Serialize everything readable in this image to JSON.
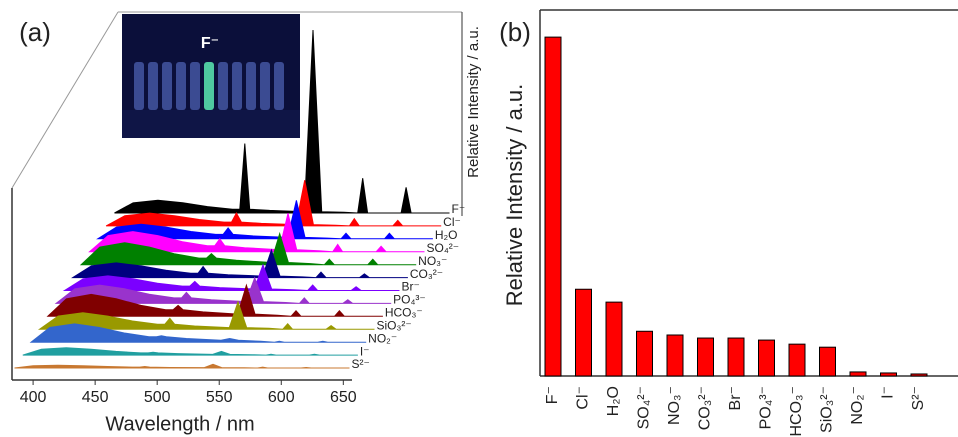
{
  "chart_data": [
    {
      "type": "area",
      "title": "(a)",
      "annotation": "F⁻",
      "x_label": "Wavelength / nm",
      "y_label": "Relative Intensity / a.u.",
      "xlim": [
        383,
        657
      ],
      "xticks": [
        400,
        450,
        500,
        550,
        600,
        650
      ],
      "x": [
        385,
        400,
        420,
        440,
        460,
        480,
        486,
        490,
        494,
        510,
        538,
        545,
        552,
        570,
        581,
        585,
        589,
        605,
        616,
        620,
        624,
        640,
        655
      ],
      "series": [
        {
          "name": "F⁻",
          "color": "#000000",
          "values": [
            0,
            5.6,
            7,
            5.6,
            3.5,
            2.1,
            2.1,
            38,
            2.1,
            1.4,
            0.7,
            100,
            0.7,
            0.4,
            0,
            19,
            0,
            0,
            0,
            14,
            0,
            0,
            0
          ]
        },
        {
          "name": "Cl⁻",
          "color": "#ff0000",
          "values": [
            0,
            5.6,
            7,
            5.6,
            3.5,
            2.1,
            2.1,
            7,
            2.1,
            1.4,
            0.7,
            25,
            0.7,
            0.4,
            0,
            4,
            0,
            0,
            0,
            3,
            0,
            0,
            0
          ]
        },
        {
          "name": "H₂O",
          "color": "#0000ff",
          "values": [
            0,
            6.4,
            8,
            6.4,
            4,
            2.4,
            2.4,
            6,
            2.4,
            1.6,
            0.8,
            21,
            0.8,
            0.4,
            0,
            3,
            0,
            0,
            0,
            3,
            0,
            0,
            0
          ]
        },
        {
          "name": "SO₄²⁻",
          "color": "#ff00ff",
          "values": [
            0,
            8.8,
            11,
            8.8,
            5.5,
            3.3,
            3.3,
            7,
            3.3,
            2.2,
            1.1,
            21,
            1.1,
            0.6,
            0,
            4,
            0,
            0,
            0,
            3,
            0,
            0,
            0
          ]
        },
        {
          "name": "NO₃⁻",
          "color": "#008000",
          "values": [
            0,
            9.6,
            12,
            9.6,
            6,
            3.6,
            3.6,
            6,
            3.6,
            2.4,
            1.2,
            17,
            1.2,
            0.6,
            0,
            3,
            0,
            0,
            0,
            3,
            0,
            0,
            0
          ]
        },
        {
          "name": "CO₃²⁻",
          "color": "#000080",
          "values": [
            0,
            6.4,
            8,
            6.4,
            4,
            2.4,
            2.4,
            6,
            2.4,
            1.6,
            0.8,
            15,
            0.8,
            0.4,
            0,
            3,
            0,
            0,
            0,
            2,
            0,
            0,
            0
          ]
        },
        {
          "name": "Br⁻",
          "color": "#7b00ff",
          "values": [
            0,
            6.4,
            8,
            6.4,
            4,
            2.4,
            2.4,
            5,
            2.4,
            1.6,
            0.8,
            14,
            0.8,
            0.4,
            0,
            3,
            0,
            0,
            0,
            2,
            0,
            0,
            0
          ]
        },
        {
          "name": "PO₄³⁻",
          "color": "#9933cc",
          "values": [
            0,
            8,
            10,
            8,
            5,
            3,
            3,
            6,
            3,
            2,
            1,
            14,
            1,
            0.5,
            0,
            3,
            0,
            0,
            0,
            2,
            0,
            0,
            0
          ]
        },
        {
          "name": "HCO₃⁻",
          "color": "#800000",
          "values": [
            0,
            9.6,
            12,
            9.6,
            6,
            3.6,
            3.6,
            6,
            3.6,
            2.4,
            1.2,
            17,
            1.2,
            0.6,
            0,
            3,
            0,
            0,
            0,
            3,
            0,
            0,
            0
          ]
        },
        {
          "name": "SiO₃²⁻",
          "color": "#999900",
          "values": [
            0,
            7.2,
            9,
            7.2,
            4.5,
            2.7,
            2.7,
            6,
            2.7,
            1.8,
            0.9,
            15,
            0.9,
            0.5,
            0,
            3,
            0,
            0,
            0,
            2,
            0,
            0,
            0
          ]
        },
        {
          "name": "NO₂⁻",
          "color": "#3366cc",
          "values": [
            0,
            8,
            10,
            8,
            5,
            3,
            3,
            3.5,
            3,
            2,
            1,
            2,
            1,
            0.5,
            0,
            0.5,
            0,
            0,
            0,
            0.5,
            0,
            0,
            0
          ]
        },
        {
          "name": "I⁻",
          "color": "#209fa0",
          "values": [
            0,
            3.2,
            4,
            3.2,
            2,
            1.2,
            1.2,
            1.5,
            1.2,
            0.8,
            0.4,
            2,
            0.4,
            0.2,
            0,
            0.5,
            0,
            0,
            0,
            0.5,
            0,
            0,
            0
          ]
        },
        {
          "name": "S²⁻",
          "color": "#c87830",
          "values": [
            0,
            1.2,
            1.5,
            1.2,
            0.8,
            0.5,
            0.5,
            0.8,
            0.5,
            0.3,
            0.2,
            2,
            0.2,
            0.1,
            0,
            0.5,
            0,
            0,
            0,
            0.3,
            0,
            0,
            0
          ]
        }
      ]
    },
    {
      "type": "bar",
      "title": "(b)",
      "y_label": "Relative Intensity / a.u.",
      "color": "#ff0000",
      "ylim": [
        0,
        108
      ],
      "categories": [
        "F⁻",
        "Cl⁻",
        "H₂O",
        "SO₄²⁻",
        "NO₃⁻",
        "CO₃²⁻",
        "Br⁻",
        "PO₄³⁻",
        "HCO₃⁻",
        "SiO₃²⁻",
        "NO₂⁻",
        "I⁻",
        "S²⁻"
      ],
      "values": [
        100,
        25.6,
        21.8,
        13.2,
        12.1,
        11.2,
        11.2,
        10.6,
        9.4,
        8.5,
        1.2,
        0.9,
        0.6
      ]
    }
  ]
}
